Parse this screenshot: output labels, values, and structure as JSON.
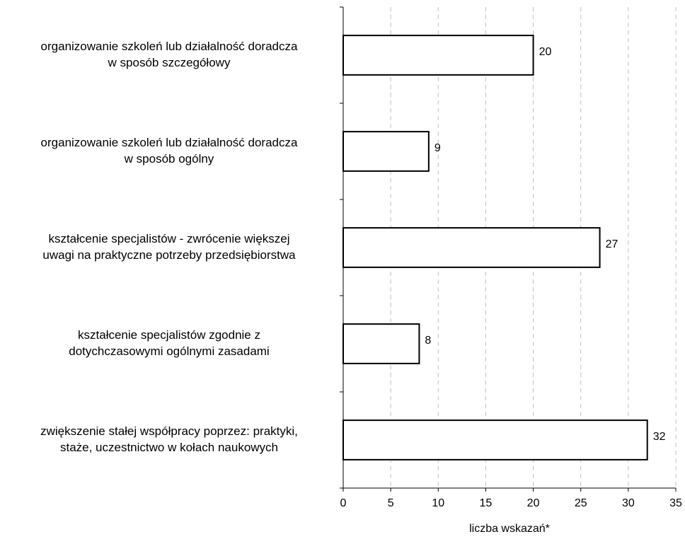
{
  "chart_data": {
    "type": "bar",
    "orientation": "horizontal",
    "categories": [
      [
        "organizowanie szkoleń lub działalność doradcza",
        "w sposób szczegółowy"
      ],
      [
        "organizowanie szkoleń lub działalność doradcza",
        "w sposób ogólny"
      ],
      [
        "kształcenie specjalistów - zwrócenie większej",
        "uwagi na praktyczne potrzeby przedsiębiorstwa"
      ],
      [
        "kształcenie specjalistów zgodnie z",
        "dotychczasowymi ogólnymi zasadami"
      ],
      [
        "zwiększenie stałej współpracy poprzez: praktyki,",
        "staże, uczestnictwo w kołach naukowych"
      ]
    ],
    "values": [
      20,
      9,
      27,
      8,
      32
    ],
    "data_labels": [
      "20",
      "9",
      "27",
      "8",
      "32"
    ],
    "xlabel": "liczba wskazań*",
    "xlim": [
      0,
      35
    ],
    "xticks": [
      0,
      5,
      10,
      15,
      20,
      25,
      30,
      35
    ],
    "xtick_labels": [
      "0",
      "5",
      "10",
      "15",
      "20",
      "25",
      "30",
      "35"
    ],
    "grid": "vertical dashed",
    "legend": "none",
    "colors": {
      "bar_fill": "#ffffff",
      "bar_stroke": "#000000",
      "grid": "#bfbfbf",
      "axis": "#000000"
    }
  }
}
